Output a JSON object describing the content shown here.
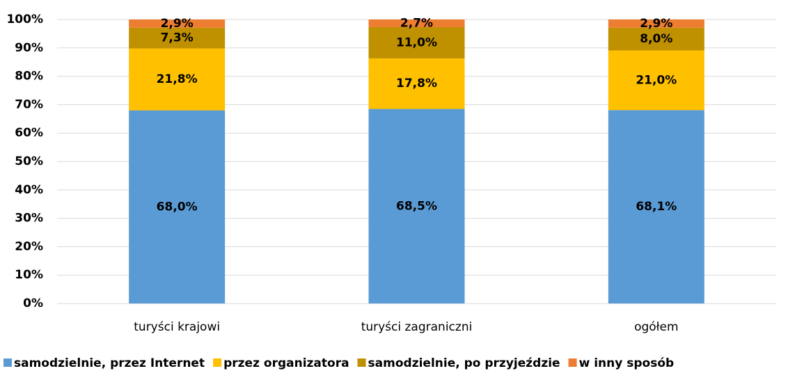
{
  "chart_data": {
    "type": "stacked_bar",
    "categories": [
      "turyści krajowi",
      "turyści zagraniczni",
      "ogółem"
    ],
    "series": [
      {
        "name": "samodzielnie, przez Internet",
        "color": "#5b9bd5",
        "values": [
          68.0,
          68.5,
          68.1
        ],
        "value_labels": [
          "68,0%",
          "68,5%",
          "68,1%"
        ]
      },
      {
        "name": "przez organizatora",
        "color": "#ffc000",
        "values": [
          21.8,
          17.8,
          21.0
        ],
        "value_labels": [
          "21,8%",
          "17,8%",
          "21,0%"
        ]
      },
      {
        "name": "samodzielnie, po przyjeździe",
        "color": "#bf9000",
        "values": [
          7.3,
          11.0,
          8.0
        ],
        "value_labels": [
          "7,3%",
          "11,0%",
          "8,0%"
        ]
      },
      {
        "name": "w inny sposób",
        "color": "#ed7d31",
        "values": [
          2.9,
          2.7,
          2.9
        ],
        "value_labels": [
          "2,9%",
          "2,7%",
          "2,9%"
        ]
      }
    ],
    "ylim": [
      0,
      100
    ],
    "yticks": [
      {
        "value": 0,
        "label": "0%"
      },
      {
        "value": 10,
        "label": "10%"
      },
      {
        "value": 20,
        "label": "20%"
      },
      {
        "value": 30,
        "label": "30%"
      },
      {
        "value": 40,
        "label": "40%"
      },
      {
        "value": 50,
        "label": "50%"
      },
      {
        "value": 60,
        "label": "60%"
      },
      {
        "value": 70,
        "label": "70%"
      },
      {
        "value": 80,
        "label": "80%"
      },
      {
        "value": 90,
        "label": "90%"
      },
      {
        "value": 100,
        "label": "100%"
      }
    ],
    "grid": true,
    "legend": "bottom"
  }
}
